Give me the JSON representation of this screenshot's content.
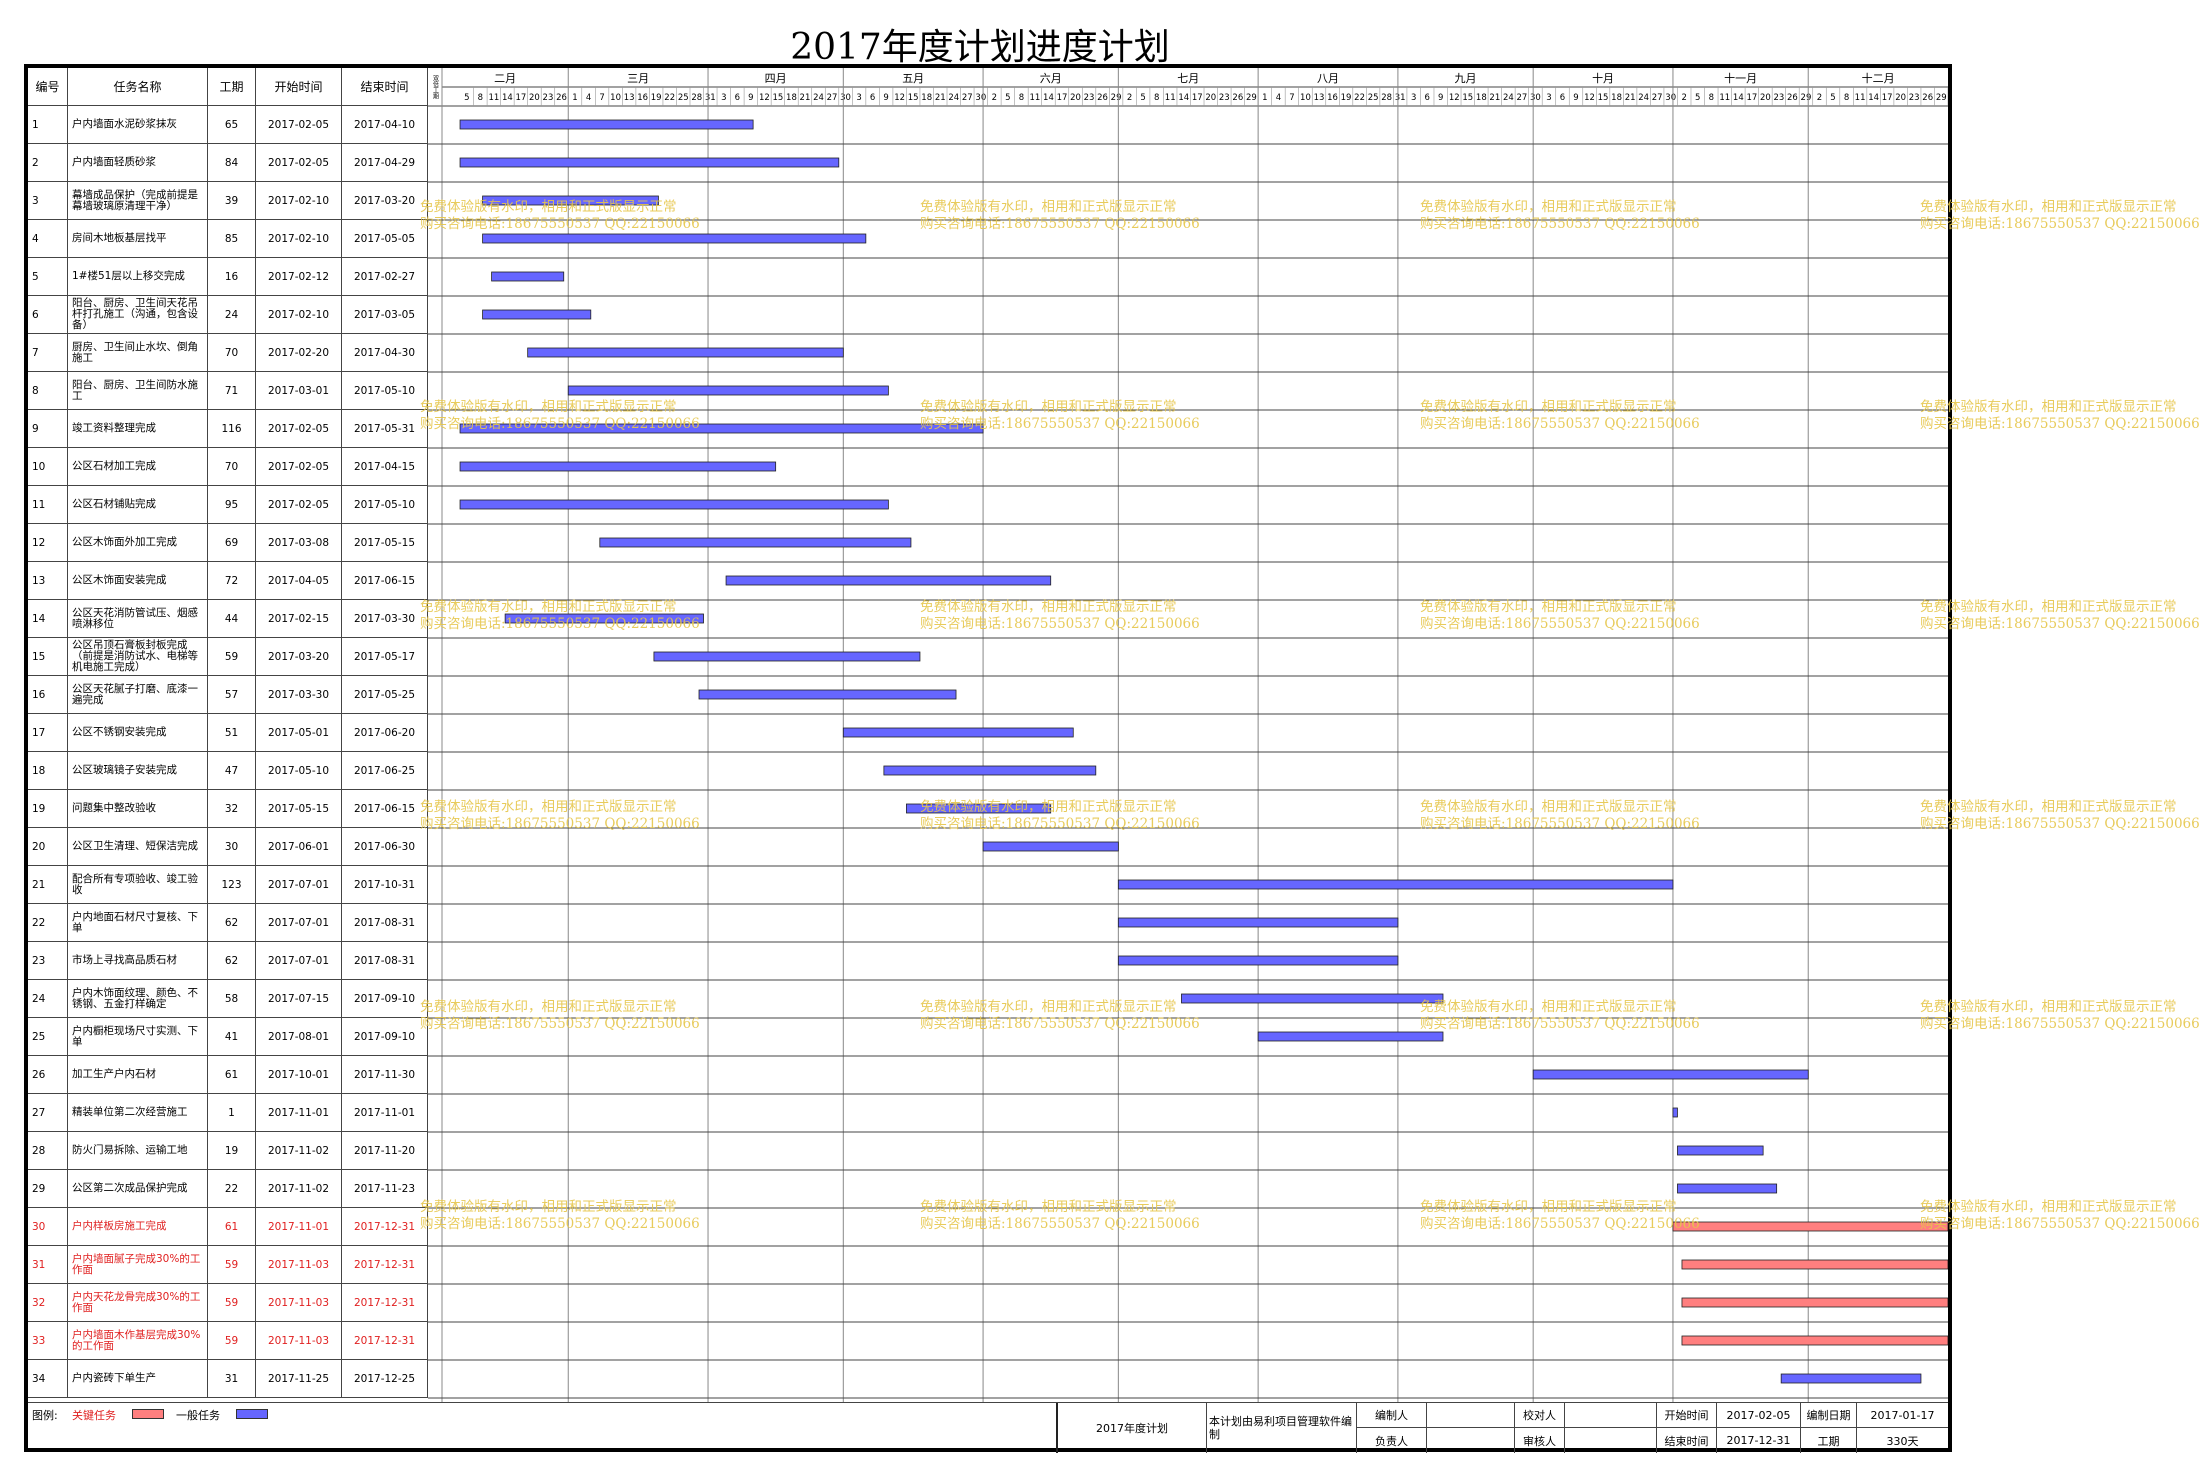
{
  "title": "2017年度计划进度计划",
  "headers": {
    "id": "编号",
    "name": "任务名称",
    "duration": "工期",
    "start": "开始时间",
    "end": "结束时间",
    "stub": "双倍工期"
  },
  "watermark": {
    "line1": "免费体验版有水印，相用和正式版显示正常",
    "line2": "购买咨询电话:18675550537 QQ:22150066"
  },
  "colors": {
    "normal": "#6666ff",
    "critical": "#ff7f7f",
    "critical_text": "#e02020"
  },
  "chart_data": {
    "type": "gantt",
    "x_range": [
      "2017-02-01",
      "2017-12-31"
    ],
    "months": [
      {
        "label": "二月",
        "start": "2017-02-01",
        "ticks": [
          "5",
          "8",
          "11",
          "14",
          "17",
          "20",
          "23",
          "26"
        ]
      },
      {
        "label": "三月",
        "start": "2017-03-01",
        "ticks": [
          "1",
          "4",
          "7",
          "10",
          "13",
          "16",
          "19",
          "22",
          "25",
          "28",
          "31"
        ]
      },
      {
        "label": "四月",
        "start": "2017-04-01",
        "ticks": [
          "3",
          "6",
          "9",
          "12",
          "15",
          "18",
          "21",
          "24",
          "27",
          "30"
        ]
      },
      {
        "label": "五月",
        "start": "2017-05-01",
        "ticks": [
          "3",
          "6",
          "9",
          "12",
          "15",
          "18",
          "21",
          "24",
          "27",
          "30"
        ]
      },
      {
        "label": "六月",
        "start": "2017-06-01",
        "ticks": [
          "2",
          "5",
          "8",
          "11",
          "14",
          "17",
          "20",
          "23",
          "26",
          "29"
        ]
      },
      {
        "label": "七月",
        "start": "2017-07-01",
        "ticks": [
          "2",
          "5",
          "8",
          "11",
          "14",
          "17",
          "20",
          "23",
          "26",
          "29"
        ]
      },
      {
        "label": "八月",
        "start": "2017-08-01",
        "ticks": [
          "1",
          "4",
          "7",
          "10",
          "13",
          "16",
          "19",
          "22",
          "25",
          "28",
          "31"
        ]
      },
      {
        "label": "九月",
        "start": "2017-09-01",
        "ticks": [
          "3",
          "6",
          "9",
          "12",
          "15",
          "18",
          "21",
          "24",
          "27",
          "30"
        ]
      },
      {
        "label": "十月",
        "start": "2017-10-01",
        "ticks": [
          "3",
          "6",
          "9",
          "12",
          "15",
          "18",
          "21",
          "24",
          "27",
          "30"
        ]
      },
      {
        "label": "十一月",
        "start": "2017-11-01",
        "ticks": [
          "2",
          "5",
          "8",
          "11",
          "14",
          "17",
          "20",
          "23",
          "26",
          "29"
        ]
      },
      {
        "label": "十二月",
        "start": "2017-12-01",
        "ticks": [
          "2",
          "5",
          "8",
          "11",
          "14",
          "17",
          "20",
          "23",
          "26",
          "29"
        ]
      }
    ],
    "tasks": [
      {
        "id": "1",
        "name": "户内墙面水泥砂浆抹灰",
        "duration": "65",
        "start": "2017-02-05",
        "end": "2017-04-10",
        "critical": false
      },
      {
        "id": "2",
        "name": "户内墙面轻质砂浆",
        "duration": "84",
        "start": "2017-02-05",
        "end": "2017-04-29",
        "critical": false
      },
      {
        "id": "3",
        "name": "幕墙成品保护（完成前提是幕墙玻璃原清理干净）",
        "duration": "39",
        "start": "2017-02-10",
        "end": "2017-03-20",
        "critical": false
      },
      {
        "id": "4",
        "name": "房间木地板基层找平",
        "duration": "85",
        "start": "2017-02-10",
        "end": "2017-05-05",
        "critical": false
      },
      {
        "id": "5",
        "name": "1#楼51层以上移交完成",
        "duration": "16",
        "start": "2017-02-12",
        "end": "2017-02-27",
        "critical": false
      },
      {
        "id": "6",
        "name": "阳台、厨房、卫生间天花吊杆打孔施工（沟通，包含设备）",
        "duration": "24",
        "start": "2017-02-10",
        "end": "2017-03-05",
        "critical": false
      },
      {
        "id": "7",
        "name": "厨房、卫生间止水坎、倒角施工",
        "duration": "70",
        "start": "2017-02-20",
        "end": "2017-04-30",
        "critical": false
      },
      {
        "id": "8",
        "name": "阳台、厨房、卫生间防水施工",
        "duration": "71",
        "start": "2017-03-01",
        "end": "2017-05-10",
        "critical": false
      },
      {
        "id": "9",
        "name": "竣工资料整理完成",
        "duration": "116",
        "start": "2017-02-05",
        "end": "2017-05-31",
        "critical": false
      },
      {
        "id": "10",
        "name": "公区石材加工完成",
        "duration": "70",
        "start": "2017-02-05",
        "end": "2017-04-15",
        "critical": false
      },
      {
        "id": "11",
        "name": "公区石材铺贴完成",
        "duration": "95",
        "start": "2017-02-05",
        "end": "2017-05-10",
        "critical": false
      },
      {
        "id": "12",
        "name": "公区木饰面外加工完成",
        "duration": "69",
        "start": "2017-03-08",
        "end": "2017-05-15",
        "critical": false
      },
      {
        "id": "13",
        "name": "公区木饰面安装完成",
        "duration": "72",
        "start": "2017-04-05",
        "end": "2017-06-15",
        "critical": false
      },
      {
        "id": "14",
        "name": "公区天花消防管试压、烟感喷淋移位",
        "duration": "44",
        "start": "2017-02-15",
        "end": "2017-03-30",
        "critical": false
      },
      {
        "id": "15",
        "name": "公区吊顶石膏板封板完成（前提是消防试水、电梯等机电施工完成）",
        "duration": "59",
        "start": "2017-03-20",
        "end": "2017-05-17",
        "critical": false
      },
      {
        "id": "16",
        "name": "公区天花腻子打磨、底漆一遍完成",
        "duration": "57",
        "start": "2017-03-30",
        "end": "2017-05-25",
        "critical": false
      },
      {
        "id": "17",
        "name": "公区不锈钢安装完成",
        "duration": "51",
        "start": "2017-05-01",
        "end": "2017-06-20",
        "critical": false
      },
      {
        "id": "18",
        "name": "公区玻璃镜子安装完成",
        "duration": "47",
        "start": "2017-05-10",
        "end": "2017-06-25",
        "critical": false
      },
      {
        "id": "19",
        "name": "问题集中整改验收",
        "duration": "32",
        "start": "2017-05-15",
        "end": "2017-06-15",
        "critical": false
      },
      {
        "id": "20",
        "name": "公区卫生清理、短保洁完成",
        "duration": "30",
        "start": "2017-06-01",
        "end": "2017-06-30",
        "critical": false
      },
      {
        "id": "21",
        "name": "配合所有专项验收、竣工验收",
        "duration": "123",
        "start": "2017-07-01",
        "end": "2017-10-31",
        "critical": false
      },
      {
        "id": "22",
        "name": "户内地面石材尺寸复核、下单",
        "duration": "62",
        "start": "2017-07-01",
        "end": "2017-08-31",
        "critical": false
      },
      {
        "id": "23",
        "name": "市场上寻找高品质石材",
        "duration": "62",
        "start": "2017-07-01",
        "end": "2017-08-31",
        "critical": false
      },
      {
        "id": "24",
        "name": "户内木饰面纹理、颜色、不锈钢、五金打样确定",
        "duration": "58",
        "start": "2017-07-15",
        "end": "2017-09-10",
        "critical": false
      },
      {
        "id": "25",
        "name": "户内橱柜现场尺寸实测、下单",
        "duration": "41",
        "start": "2017-08-01",
        "end": "2017-09-10",
        "critical": false
      },
      {
        "id": "26",
        "name": "加工生产户内石材",
        "duration": "61",
        "start": "2017-10-01",
        "end": "2017-11-30",
        "critical": false
      },
      {
        "id": "27",
        "name": "精装单位第二次经营施工",
        "duration": "1",
        "start": "2017-11-01",
        "end": "2017-11-01",
        "critical": false
      },
      {
        "id": "28",
        "name": "防火门易拆除、运输工地",
        "duration": "19",
        "start": "2017-11-02",
        "end": "2017-11-20",
        "critical": false
      },
      {
        "id": "29",
        "name": "公区第二次成品保护完成",
        "duration": "22",
        "start": "2017-11-02",
        "end": "2017-11-23",
        "critical": false
      },
      {
        "id": "30",
        "name": "户内样板房施工完成",
        "duration": "61",
        "start": "2017-11-01",
        "end": "2017-12-31",
        "critical": true
      },
      {
        "id": "31",
        "name": "户内墙面腻子完成30%的工作面",
        "duration": "59",
        "start": "2017-11-03",
        "end": "2017-12-31",
        "critical": true
      },
      {
        "id": "32",
        "name": "户内天花龙骨完成30%的工作面",
        "duration": "59",
        "start": "2017-11-03",
        "end": "2017-12-31",
        "critical": true
      },
      {
        "id": "33",
        "name": "户内墙面木作基层完成30%的工作面",
        "duration": "59",
        "start": "2017-11-03",
        "end": "2017-12-31",
        "critical": true
      },
      {
        "id": "34",
        "name": "户内瓷砖下单生产",
        "duration": "31",
        "start": "2017-11-25",
        "end": "2017-12-25",
        "critical": false
      }
    ]
  },
  "legend": {
    "label": "图例:",
    "critical": "关键任务",
    "normal": "一般任务"
  },
  "footer": {
    "plan_name": "2017年度计划",
    "made_by": "本计划由易利项目管理软件编制",
    "compiler_label": "编制人",
    "responsible_label": "负责人",
    "checker_label": "校对人",
    "reviewer_label": "审核人",
    "start_label": "开始时间",
    "start_value": "2017-02-05",
    "end_label": "结束时间",
    "end_value": "2017-12-31",
    "date_label": "编制日期",
    "date_value": "2017-01-17",
    "duration_label": "工期",
    "duration_value": "330天"
  }
}
